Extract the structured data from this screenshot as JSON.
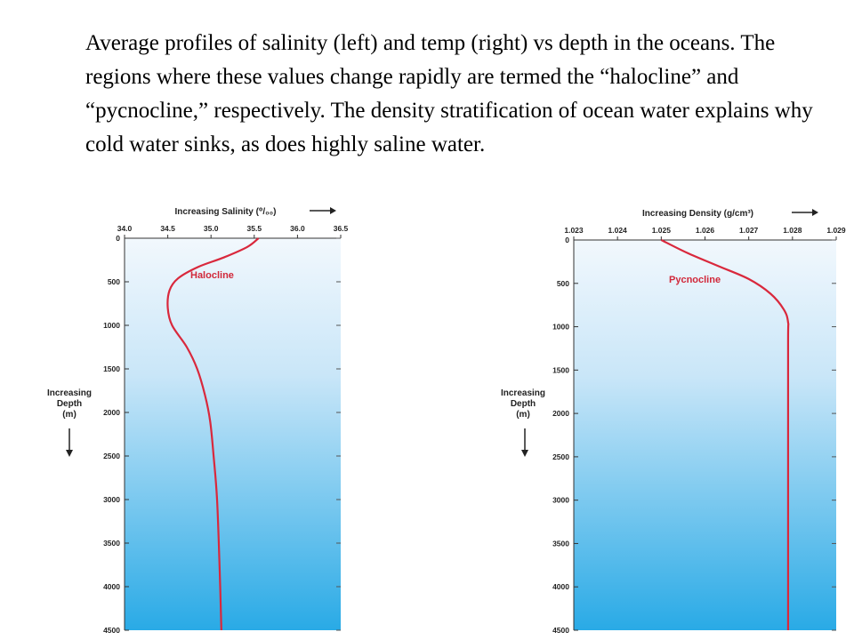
{
  "caption": "Average profiles of salinity (left) and temp (right) vs depth in the oceans.  The regions where these values change rapidly are termed the “halocline” and “pycnocline,” respectively.  The density stratification of ocean water explains why cold water sinks, as does highly saline water.",
  "colors": {
    "curve": "#d9283c",
    "water_top": "#f2f8fd",
    "water_bottom": "#29aae6",
    "axis": "#333333"
  },
  "chart_data": [
    {
      "type": "line",
      "xlabel": "Increasing Salinity (⁰/₀₀)",
      "ylabel_lines": [
        "Increasing",
        "Depth",
        "(m)"
      ],
      "x_ticks": [
        "34.0",
        "34.5",
        "35.0",
        "35.5",
        "36.0",
        "36.5"
      ],
      "y_ticks": [
        "0",
        "500",
        "1000",
        "1500",
        "2000",
        "2500",
        "3000",
        "3500",
        "4000",
        "4500"
      ],
      "xlim": [
        34.0,
        36.5
      ],
      "ylim": [
        0,
        4500
      ],
      "y_inverted": true,
      "annotation": "Halocline",
      "series": [
        {
          "x": [
            35.55,
            35.42,
            35.15,
            34.85,
            34.62,
            34.52,
            34.5,
            34.55,
            34.72,
            34.84,
            34.93,
            34.99,
            35.03,
            35.07,
            35.1,
            35.12
          ],
          "y": [
            0,
            100,
            220,
            330,
            460,
            600,
            800,
            1000,
            1250,
            1500,
            1800,
            2100,
            2500,
            3000,
            3800,
            4500
          ]
        }
      ]
    },
    {
      "type": "line",
      "xlabel": "Increasing Density (g/cm³)",
      "ylabel_lines": [
        "Increasing",
        "Depth",
        "(m)"
      ],
      "x_ticks": [
        "1.023",
        "1.024",
        "1.025",
        "1.026",
        "1.027",
        "1.028",
        "1.029"
      ],
      "y_ticks": [
        "0",
        "500",
        "1000",
        "1500",
        "2000",
        "2500",
        "3000",
        "3500",
        "4000",
        "4500"
      ],
      "xlim": [
        1.023,
        1.029
      ],
      "ylim": [
        0,
        4500
      ],
      "y_inverted": true,
      "annotation": "Pycnocline",
      "series": [
        {
          "x": [
            1.025,
            1.0256,
            1.0263,
            1.027,
            1.0275,
            1.0278,
            1.0279,
            1.0279,
            1.0279,
            1.0279
          ],
          "y": [
            0,
            150,
            300,
            450,
            620,
            800,
            950,
            1200,
            3000,
            4500
          ]
        }
      ]
    }
  ]
}
